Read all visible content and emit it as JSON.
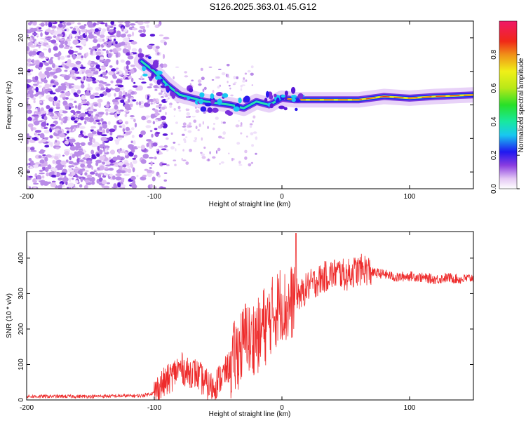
{
  "title": "S126.2025.363.01.45.G12",
  "chart_data": [
    {
      "type": "heatmap",
      "xlabel": "Height of straight line (km)",
      "ylabel": "Frequency (Hz)",
      "xlim": [
        -200,
        150
      ],
      "ylim": [
        -25,
        25
      ],
      "xticks": [
        -200,
        -100,
        0,
        100
      ],
      "yticks": [
        -20,
        -10,
        0,
        10,
        20
      ],
      "colorbar": {
        "label": "Normalized spectral amplitude",
        "range": [
          0,
          1
        ],
        "ticks": [
          0.0,
          0.2,
          0.4,
          0.6,
          0.8
        ]
      },
      "ridge": {
        "x": [
          -110,
          -100,
          -90,
          -80,
          -70,
          -60,
          -50,
          -40,
          -30,
          -20,
          -10,
          0,
          10,
          20,
          40,
          60,
          80,
          100,
          120,
          150
        ],
        "freq": [
          13,
          10,
          6,
          3,
          2,
          1,
          0.5,
          0,
          -1,
          1,
          0,
          2,
          1.5,
          1.5,
          1.5,
          1.5,
          2.5,
          2,
          2.5,
          3
        ]
      }
    },
    {
      "type": "line",
      "xlabel": "Height of straight line (km)",
      "ylabel": "SNR (10 * v/v)",
      "xlim": [
        -200,
        150
      ],
      "ylim": [
        0,
        475
      ],
      "xticks": [
        -200,
        -100,
        0,
        100
      ],
      "yticks": [
        0,
        100,
        200,
        300,
        400
      ],
      "series": [
        {
          "name": "SNR",
          "color": "#ee2b2b",
          "x": [
            -200,
            -150,
            -110,
            -100,
            -95,
            -88,
            -82,
            -78,
            -74,
            -70,
            -66,
            -62,
            -58,
            -54,
            -50,
            -46,
            -42,
            -38,
            -34,
            -30,
            -27,
            -25,
            -22,
            -20,
            -17,
            -15,
            -12,
            -10,
            -8,
            -5,
            -2,
            0,
            3,
            6,
            9,
            12,
            15,
            20,
            25,
            30,
            35,
            40,
            45,
            50,
            55,
            60,
            65,
            70,
            80,
            90,
            100,
            110,
            120,
            130,
            140,
            150
          ],
          "values": [
            10,
            10,
            12,
            20,
            40,
            60,
            85,
            90,
            75,
            80,
            70,
            55,
            40,
            35,
            55,
            70,
            90,
            110,
            140,
            160,
            200,
            150,
            180,
            190,
            170,
            220,
            200,
            230,
            240,
            250,
            270,
            280,
            255,
            265,
            285,
            300,
            295,
            320,
            330,
            340,
            350,
            355,
            360,
            350,
            360,
            365,
            370,
            360,
            355,
            345,
            350,
            345,
            340,
            345,
            340,
            345
          ]
        }
      ]
    }
  ]
}
